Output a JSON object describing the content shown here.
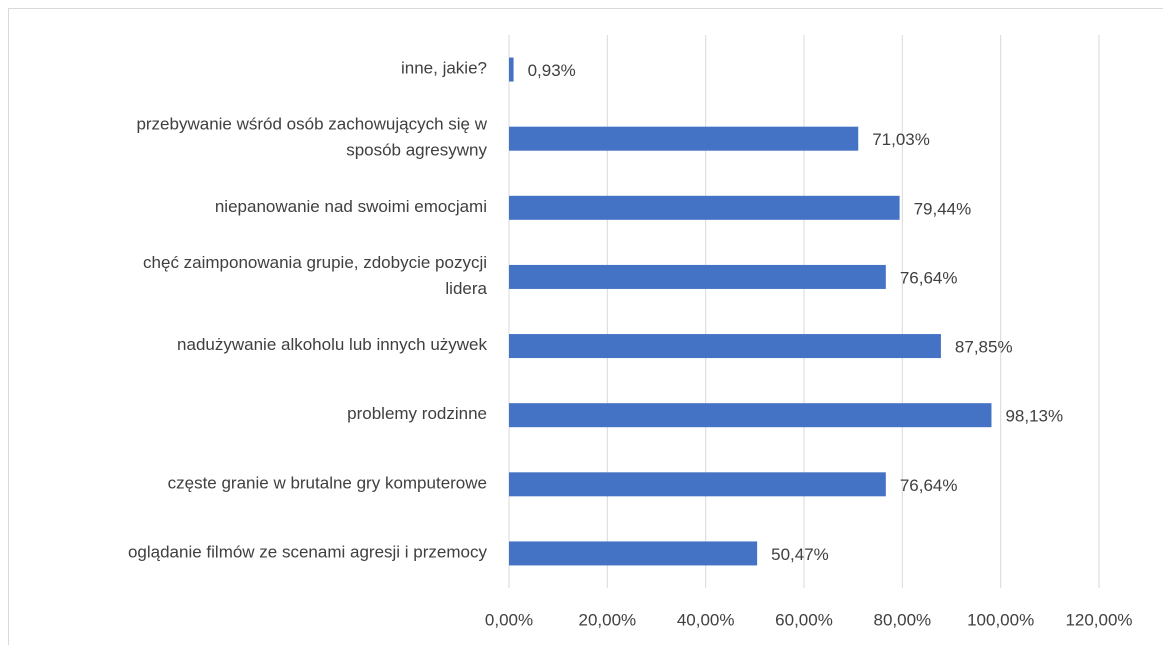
{
  "chart_data": {
    "type": "bar",
    "orientation": "horizontal",
    "categories": [
      "inne, jakie?",
      "przebywanie wśród osób zachowujących się w\nsposób agresywny",
      "niepanowanie nad swoimi emocjami",
      "chęć zaimponowania grupie, zdobycie pozycji\nlidera",
      "nadużywanie alkoholu lub innych używek",
      "problemy rodzinne",
      "częste granie w brutalne gry komputerowe",
      "oglądanie filmów ze scenami agresji i przemocy"
    ],
    "values": [
      0.93,
      71.03,
      79.44,
      76.64,
      87.85,
      98.13,
      76.64,
      50.47
    ],
    "value_labels": [
      "0,93%",
      "71,03%",
      "79,44%",
      "76,64%",
      "87,85%",
      "98,13%",
      "76,64%",
      "50,47%"
    ],
    "color": "#4472c4",
    "xlim": [
      0,
      120
    ],
    "xticks": [
      {
        "value": 0,
        "label": "0,00%"
      },
      {
        "value": 20,
        "label": "20,00%"
      },
      {
        "value": 40,
        "label": "40,00%"
      },
      {
        "value": 60,
        "label": "60,00%"
      },
      {
        "value": 80,
        "label": "80,00%"
      },
      {
        "value": 100,
        "label": "100,00%"
      },
      {
        "value": 120,
        "label": "120,00%"
      }
    ],
    "grid": true
  }
}
